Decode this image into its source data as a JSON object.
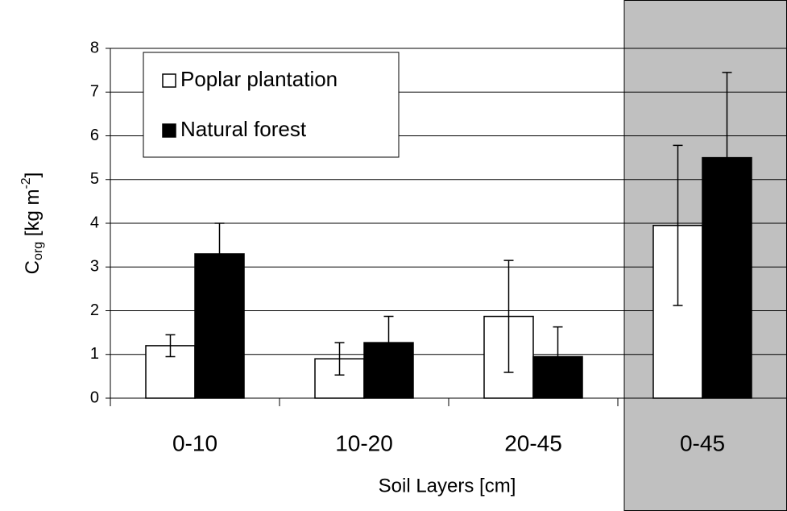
{
  "chart_data": {
    "type": "bar",
    "y_label": {
      "main": "C",
      "sub": "org",
      "unit": " [kg m",
      "sup": "-2",
      "close": "]"
    },
    "x_label": "Soil Layers [cm]",
    "categories": [
      "0-10",
      "10-20",
      "20-45",
      "0-45"
    ],
    "series": [
      {
        "name": "Poplar plantation",
        "color": "#ffffff",
        "values": [
          1.2,
          0.9,
          1.87,
          3.95
        ],
        "errors": [
          0.25,
          0.37,
          1.28,
          1.83
        ]
      },
      {
        "name": "Natural forest",
        "color": "#000000",
        "values": [
          3.3,
          1.27,
          0.95,
          5.5
        ],
        "errors": [
          0.7,
          0.6,
          0.68,
          1.95
        ]
      }
    ],
    "ylim": [
      0,
      8
    ],
    "yticks": [
      0,
      1,
      2,
      3,
      4,
      5,
      6,
      7,
      8
    ],
    "grid": true,
    "legend": "upper left"
  }
}
